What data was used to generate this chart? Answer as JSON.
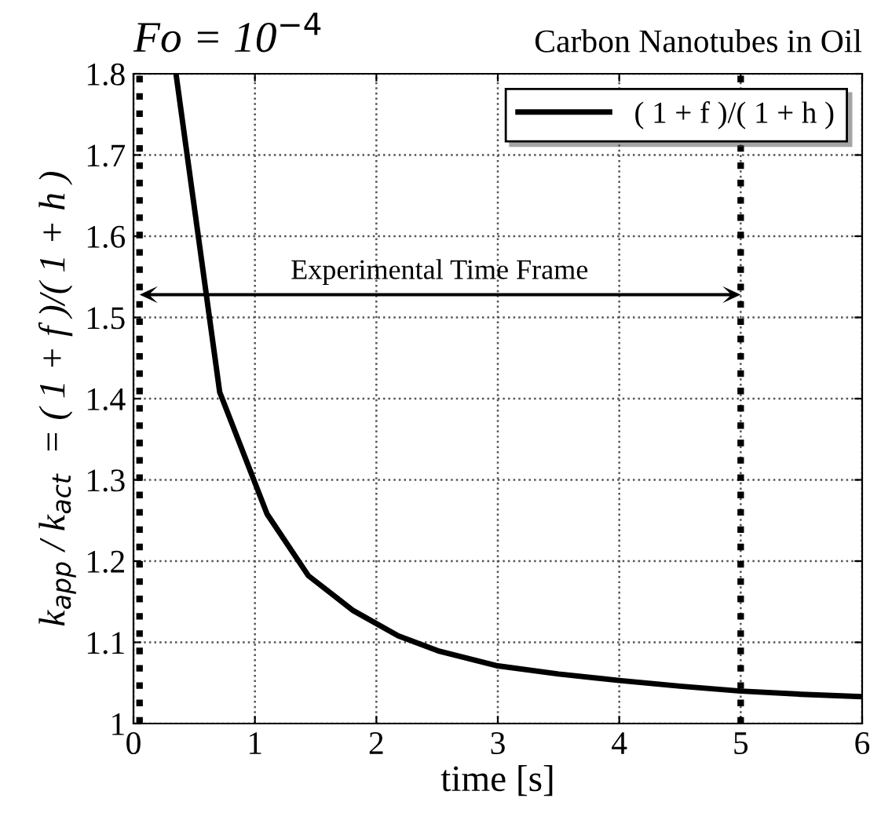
{
  "chart_data": {
    "type": "line",
    "title": "Fo = 10$^{−4}$",
    "subtitle": "Carbon Nanotubes in Oil",
    "xlabel": "time [s]",
    "ylabel": "k$_{app}$ / k$_{act}$  = ( 1 + f )/( 1 + h )",
    "series": [
      {
        "name": "( 1 + f )/( 1 + h )",
        "color": "#000000",
        "x": [
          0.35,
          0.71,
          1.1,
          1.44,
          1.81,
          2.18,
          2.52,
          3.0,
          3.5,
          4.0,
          4.5,
          5.0,
          5.5,
          6.0
        ],
        "values": [
          1.8,
          1.408,
          1.258,
          1.182,
          1.139,
          1.108,
          1.089,
          1.071,
          1.061,
          1.053,
          1.046,
          1.04,
          1.036,
          1.033
        ]
      }
    ],
    "xlim": [
      0,
      6
    ],
    "xticks": [
      0,
      1,
      2,
      3,
      4,
      5,
      6
    ],
    "ylim": [
      1,
      1.8
    ],
    "yticks": [
      1,
      1.1,
      1.2,
      1.3,
      1.4,
      1.5,
      1.6,
      1.7,
      1.8
    ],
    "ref_lines": [
      {
        "axis": "x",
        "value": 0.05,
        "color": "#000000",
        "line_style": "dotted"
      },
      {
        "axis": "x",
        "value": 5,
        "color": "#000000",
        "line_style": "dotted"
      }
    ],
    "annotations": [
      "Experimental Time Frame"
    ],
    "grid": true,
    "legend": "top right",
    "marker": "none",
    "line_style": "solid"
  }
}
